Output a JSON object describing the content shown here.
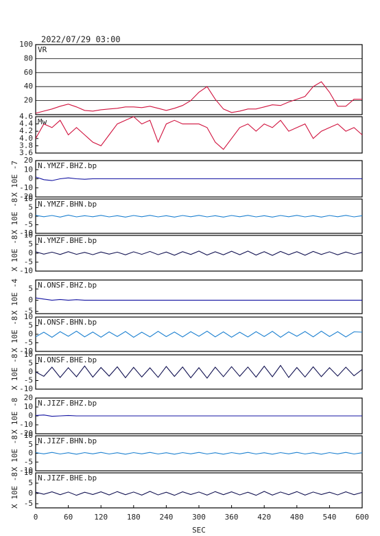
{
  "chart_data": [
    {
      "type": "line",
      "title": "2022/07/29 03:00",
      "name": "VR",
      "color": "#d0103c",
      "grid": true,
      "x": [
        0,
        15,
        30,
        45,
        60,
        75,
        90,
        105,
        120,
        135,
        150,
        165,
        180,
        195,
        210,
        225,
        240,
        255,
        270,
        285,
        300,
        315,
        330,
        345,
        360,
        375,
        390,
        405,
        420,
        435,
        450,
        465,
        480,
        495,
        510,
        525,
        540,
        555,
        570,
        585,
        600
      ],
      "values": [
        2,
        5,
        8,
        12,
        15,
        11,
        6,
        5,
        7,
        8,
        9,
        11,
        11,
        10,
        12,
        9,
        6,
        9,
        13,
        20,
        32,
        40,
        22,
        8,
        3,
        5,
        8,
        8,
        11,
        14,
        13,
        18,
        22,
        26,
        40,
        47,
        32,
        12,
        12,
        22,
        22
      ],
      "xlim": [
        0,
        600
      ],
      "ylim": [
        0,
        100
      ],
      "yticks": [
        20,
        40,
        60,
        80,
        100
      ]
    },
    {
      "type": "line",
      "name": "Mw",
      "color": "#d0103c",
      "x": [
        0,
        15,
        30,
        45,
        60,
        75,
        90,
        105,
        120,
        135,
        150,
        165,
        180,
        195,
        210,
        225,
        240,
        255,
        270,
        285,
        300,
        315,
        330,
        345,
        360,
        375,
        390,
        405,
        420,
        435,
        450,
        465,
        480,
        495,
        510,
        525,
        540,
        555,
        570,
        585,
        600
      ],
      "values": [
        4.0,
        4.4,
        4.3,
        4.5,
        4.1,
        4.3,
        4.1,
        3.9,
        3.8,
        4.1,
        4.4,
        4.5,
        4.6,
        4.4,
        4.5,
        3.9,
        4.4,
        4.5,
        4.4,
        4.4,
        4.4,
        4.3,
        3.9,
        3.7,
        4.0,
        4.3,
        4.4,
        4.2,
        4.4,
        4.3,
        4.5,
        4.2,
        4.3,
        4.4,
        4.0,
        4.2,
        4.3,
        4.4,
        4.2,
        4.3,
        4.1
      ],
      "xlim": [
        0,
        600
      ],
      "ylim": [
        3.6,
        4.6
      ],
      "yticks": [
        3.6,
        3.8,
        {
          "value": 4,
          "label": "4.0"
        },
        4.2,
        4.4,
        4.6
      ]
    },
    {
      "type": "line",
      "name": "N.YMZF.BHZ.bp",
      "ylabel": "X 10E -7",
      "color": "#1010a0",
      "x": [
        0,
        15,
        30,
        45,
        60,
        75,
        90,
        105,
        120,
        135,
        150,
        165,
        180,
        195,
        210,
        225,
        240,
        255,
        270,
        285,
        300,
        315,
        330,
        345,
        360,
        375,
        390,
        405,
        420,
        435,
        450,
        465,
        480,
        495,
        510,
        525,
        540,
        555,
        570,
        585,
        600
      ],
      "values": [
        2,
        -1,
        -2,
        0,
        1,
        0,
        -0.5,
        0,
        0,
        0,
        0,
        0,
        0,
        0,
        0,
        0,
        0,
        0,
        0,
        0,
        0,
        0,
        0,
        0,
        0,
        0,
        0,
        0,
        0,
        0,
        0,
        0,
        0,
        0,
        0,
        0,
        0,
        0,
        0,
        0,
        0
      ],
      "xlim": [
        0,
        600
      ],
      "ylim": [
        -20,
        20
      ],
      "yticks": [
        -20,
        -10,
        0,
        10,
        20
      ]
    },
    {
      "type": "line",
      "name": "N.YMZF.BHN.bp",
      "ylabel": "X 10E -8",
      "color": "#1a7fd0",
      "x": [
        0,
        15,
        30,
        45,
        60,
        75,
        90,
        105,
        120,
        135,
        150,
        165,
        180,
        195,
        210,
        225,
        240,
        255,
        270,
        285,
        300,
        315,
        330,
        345,
        360,
        375,
        390,
        405,
        420,
        435,
        450,
        465,
        480,
        495,
        510,
        525,
        540,
        555,
        570,
        585,
        600
      ],
      "values": [
        0.5,
        -0.3,
        0.4,
        -0.5,
        0.6,
        -0.4,
        0.3,
        -0.3,
        0.5,
        -0.4,
        0.3,
        -0.5,
        0.4,
        -0.3,
        0.5,
        -0.4,
        0.3,
        -0.5,
        0.4,
        -0.3,
        0.5,
        -0.4,
        0.3,
        -0.5,
        0.4,
        -0.3,
        0.5,
        -0.4,
        0.3,
        -0.5,
        0.4,
        -0.3,
        0.5,
        -0.4,
        0.3,
        -0.5,
        0.4,
        -0.3,
        0.5,
        -0.4,
        0.3
      ],
      "xlim": [
        0,
        600
      ],
      "ylim": [
        -10,
        10
      ],
      "yticks": [
        -10,
        -5,
        0,
        5,
        10
      ]
    },
    {
      "type": "line",
      "name": "N.YMZF.BHE.bp",
      "ylabel": "X 10E -8",
      "color": "#101050",
      "x": [
        0,
        15,
        30,
        45,
        60,
        75,
        90,
        105,
        120,
        135,
        150,
        165,
        180,
        195,
        210,
        225,
        240,
        255,
        270,
        285,
        300,
        315,
        330,
        345,
        360,
        375,
        390,
        405,
        420,
        435,
        450,
        465,
        480,
        495,
        510,
        525,
        540,
        555,
        570,
        585,
        600
      ],
      "values": [
        0.8,
        -0.5,
        0.6,
        -0.7,
        0.9,
        -0.6,
        0.5,
        -0.8,
        0.7,
        -0.5,
        0.6,
        -0.9,
        0.8,
        -0.6,
        1.0,
        -0.8,
        0.7,
        -1.1,
        0.9,
        -0.7,
        1.2,
        -1.0,
        0.8,
        -0.9,
        1.1,
        -0.8,
        1.2,
        -1.0,
        0.9,
        -1.2,
        1.0,
        -0.8,
        0.9,
        -1.1,
        1.0,
        -0.7,
        0.8,
        -0.9,
        0.7,
        -0.6,
        0.5
      ],
      "xlim": [
        0,
        600
      ],
      "ylim": [
        -10,
        10
      ],
      "yticks": [
        -10,
        -5,
        0,
        5,
        10
      ]
    },
    {
      "type": "line",
      "name": "N.ONSF.BHZ.bp",
      "ylabel": "X 10E -4",
      "color": "#1010a0",
      "x": [
        0,
        15,
        30,
        45,
        60,
        75,
        90,
        105,
        120,
        135,
        150,
        165,
        180,
        195,
        210,
        225,
        240,
        255,
        270,
        285,
        300,
        315,
        330,
        345,
        360,
        375,
        390,
        405,
        420,
        435,
        450,
        465,
        480,
        495,
        510,
        525,
        540,
        555,
        570,
        585,
        600
      ],
      "values": [
        1,
        0.5,
        0,
        0.3,
        0,
        0.2,
        0,
        0,
        0,
        0,
        0,
        0,
        0,
        0,
        0,
        0,
        0,
        0,
        0,
        0,
        0,
        0,
        0,
        0,
        0,
        0,
        0,
        0,
        0,
        0,
        0,
        0,
        0,
        0,
        0,
        0,
        0,
        0,
        0,
        0,
        0
      ],
      "xlim": [
        0,
        600
      ],
      "ylim": [
        -6,
        9
      ],
      "yticks": [
        -5,
        0,
        5
      ]
    },
    {
      "type": "line",
      "name": "N.ONSF.BHN.bp",
      "ylabel": "X 10E -8",
      "color": "#1a7fd0",
      "x": [
        0,
        15,
        30,
        45,
        60,
        75,
        90,
        105,
        120,
        135,
        150,
        165,
        180,
        195,
        210,
        225,
        240,
        255,
        270,
        285,
        300,
        315,
        330,
        345,
        360,
        375,
        390,
        405,
        420,
        435,
        450,
        465,
        480,
        495,
        510,
        525,
        540,
        555,
        570,
        585,
        600
      ],
      "values": [
        -1.5,
        1.2,
        -1.8,
        1.5,
        -1.2,
        1.8,
        -1.5,
        1.3,
        -1.7,
        1.4,
        -1.3,
        1.6,
        -1.8,
        1.2,
        -1.5,
        1.7,
        -1.4,
        1.3,
        -1.6,
        1.5,
        -1.2,
        1.8,
        -1.5,
        1.4,
        -1.7,
        1.2,
        -1.6,
        1.5,
        -1.3,
        1.7,
        -1.8,
        1.4,
        -1.2,
        1.6,
        -1.5,
        1.8,
        -1.3,
        1.5,
        -1.6,
        1.4,
        1.2
      ],
      "xlim": [
        0,
        600
      ],
      "ylim": [
        -10,
        10
      ],
      "yticks": [
        -10,
        -5,
        0,
        5,
        10
      ]
    },
    {
      "type": "line",
      "name": "N.ONSF.BHE.bp",
      "ylabel": "X 10E -8",
      "color": "#101050",
      "x": [
        0,
        15,
        30,
        45,
        60,
        75,
        90,
        105,
        120,
        135,
        150,
        165,
        180,
        195,
        210,
        225,
        240,
        255,
        270,
        285,
        300,
        315,
        330,
        345,
        360,
        375,
        390,
        405,
        420,
        435,
        450,
        465,
        480,
        495,
        510,
        525,
        540,
        555,
        570,
        585,
        600
      ],
      "values": [
        0,
        -2.5,
        2.8,
        -3.2,
        2.5,
        -2.8,
        3.5,
        -3.0,
        2.6,
        -2.4,
        3.0,
        -3.3,
        2.7,
        -2.9,
        2.4,
        -3.1,
        3.2,
        -2.6,
        2.9,
        -3.4,
        2.5,
        -3.6,
        2.8,
        -2.7,
        3.1,
        -2.5,
        2.9,
        -3.0,
        3.4,
        -2.8,
        3.8,
        -3.2,
        2.6,
        -2.9,
        3.0,
        -2.7,
        2.5,
        -2.4,
        2.8,
        -2.2,
        1.5
      ],
      "xlim": [
        0,
        600
      ],
      "ylim": [
        -10,
        10
      ],
      "yticks": [
        -10,
        -5,
        0,
        5,
        10
      ]
    },
    {
      "type": "line",
      "name": "N.JIZF.BHZ.bp",
      "ylabel": "X 10E -8",
      "color": "#1010a0",
      "x": [
        0,
        15,
        30,
        45,
        60,
        75,
        90,
        105,
        120,
        135,
        150,
        165,
        180,
        195,
        210,
        225,
        240,
        255,
        270,
        285,
        300,
        315,
        330,
        345,
        360,
        375,
        390,
        405,
        420,
        435,
        450,
        465,
        480,
        495,
        510,
        525,
        540,
        555,
        570,
        585,
        600
      ],
      "values": [
        0.5,
        1,
        -0.5,
        0,
        0.5,
        0,
        0,
        0,
        0,
        0,
        0,
        0,
        0,
        0,
        0,
        0,
        0,
        0,
        0,
        0,
        0,
        0,
        0,
        0,
        0,
        0,
        0,
        0,
        0,
        0,
        0,
        0,
        0,
        0,
        0,
        0,
        0,
        0,
        0,
        0,
        0
      ],
      "xlim": [
        0,
        600
      ],
      "ylim": [
        -20,
        20
      ],
      "yticks": [
        -20,
        -10,
        0,
        10,
        20
      ]
    },
    {
      "type": "line",
      "name": "N.JIZF.BHN.bp",
      "ylabel": "X 10E -8",
      "color": "#1a7fd0",
      "x": [
        0,
        15,
        30,
        45,
        60,
        75,
        90,
        105,
        120,
        135,
        150,
        165,
        180,
        195,
        210,
        225,
        240,
        255,
        270,
        285,
        300,
        315,
        330,
        345,
        360,
        375,
        390,
        405,
        420,
        435,
        450,
        465,
        480,
        495,
        510,
        525,
        540,
        555,
        570,
        585,
        600
      ],
      "values": [
        0.4,
        -0.3,
        0.5,
        -0.4,
        0.3,
        -0.5,
        0.4,
        -0.3,
        0.5,
        -0.4,
        0.3,
        -0.5,
        0.4,
        -0.3,
        0.5,
        -0.4,
        0.3,
        -0.5,
        0.4,
        -0.3,
        0.5,
        -0.4,
        0.3,
        -0.5,
        0.4,
        -0.3,
        0.5,
        -0.4,
        0.3,
        -0.5,
        0.4,
        -0.3,
        0.5,
        -0.4,
        0.3,
        -0.5,
        0.4,
        -0.3,
        0.5,
        -0.4,
        0.3
      ],
      "xlim": [
        0,
        600
      ],
      "ylim": [
        -10,
        10
      ],
      "yticks": [
        -10,
        -5,
        0,
        5,
        10
      ]
    },
    {
      "type": "line",
      "name": "N.JIZF.BHE.bp",
      "ylabel": "X 10E -8",
      "color": "#101050",
      "xlabel": "SEC",
      "x": [
        0,
        15,
        30,
        45,
        60,
        75,
        90,
        105,
        120,
        135,
        150,
        165,
        180,
        195,
        210,
        225,
        240,
        255,
        270,
        285,
        300,
        315,
        330,
        345,
        360,
        375,
        390,
        405,
        420,
        435,
        450,
        465,
        480,
        495,
        510,
        525,
        540,
        555,
        570,
        585,
        600
      ],
      "values": [
        0.6,
        -0.4,
        0.8,
        -0.6,
        0.7,
        -0.9,
        0.6,
        -0.5,
        0.8,
        -0.7,
        0.9,
        -0.6,
        0.7,
        -0.8,
        1.0,
        -0.7,
        0.6,
        -0.9,
        0.8,
        -0.5,
        0.7,
        -0.8,
        0.9,
        -0.6,
        0.8,
        -0.7,
        0.6,
        -0.9,
        1.0,
        -0.8,
        0.7,
        -0.6,
        0.9,
        -0.8,
        0.7,
        -0.5,
        0.6,
        -0.7,
        0.8,
        -0.6,
        0.5
      ],
      "xlim": [
        0,
        600
      ],
      "ylim": [
        -7,
        10
      ],
      "yticks": [
        -5,
        0,
        5,
        10
      ],
      "xticks": [
        0,
        60,
        120,
        180,
        240,
        300,
        360,
        420,
        480,
        540,
        600
      ]
    }
  ]
}
